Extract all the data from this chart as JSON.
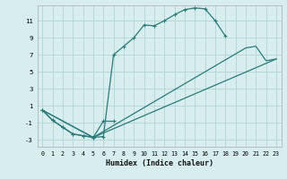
{
  "xlabel": "Humidex (Indice chaleur)",
  "bg_color": "#d8eeee",
  "grid_color": "#b8d8d8",
  "line_color": "#2a7a7a",
  "xlim": [
    -0.5,
    23.5
  ],
  "ylim": [
    -3.8,
    12.8
  ],
  "xticks": [
    0,
    1,
    2,
    3,
    4,
    5,
    6,
    7,
    8,
    9,
    10,
    11,
    12,
    13,
    14,
    15,
    16,
    17,
    18,
    19,
    20,
    21,
    22,
    23
  ],
  "yticks": [
    -3,
    -1,
    1,
    3,
    5,
    7,
    9,
    11
  ],
  "s1x": [
    0,
    1,
    2,
    3,
    4,
    5,
    6,
    7,
    8,
    9,
    10,
    11,
    12,
    13,
    14,
    15,
    16,
    17,
    18
  ],
  "s1y": [
    0.5,
    -0.7,
    -1.5,
    -2.3,
    -2.5,
    -2.7,
    -2.6,
    7.0,
    8.0,
    9.0,
    10.5,
    10.4,
    11.0,
    11.7,
    12.3,
    12.5,
    12.4,
    11.0,
    9.2
  ],
  "s2x": [
    0,
    1,
    2,
    3,
    4,
    5,
    6,
    7
  ],
  "s2y": [
    0.5,
    -0.7,
    -1.5,
    -2.3,
    -2.5,
    -2.7,
    -0.8,
    -0.8
  ],
  "s3x": [
    0,
    5,
    23
  ],
  "s3y": [
    0.5,
    -2.7,
    6.5
  ],
  "s4x": [
    0,
    5,
    20,
    21,
    22,
    23
  ],
  "s4y": [
    0.5,
    -2.7,
    7.8,
    8.0,
    6.3,
    6.5
  ]
}
